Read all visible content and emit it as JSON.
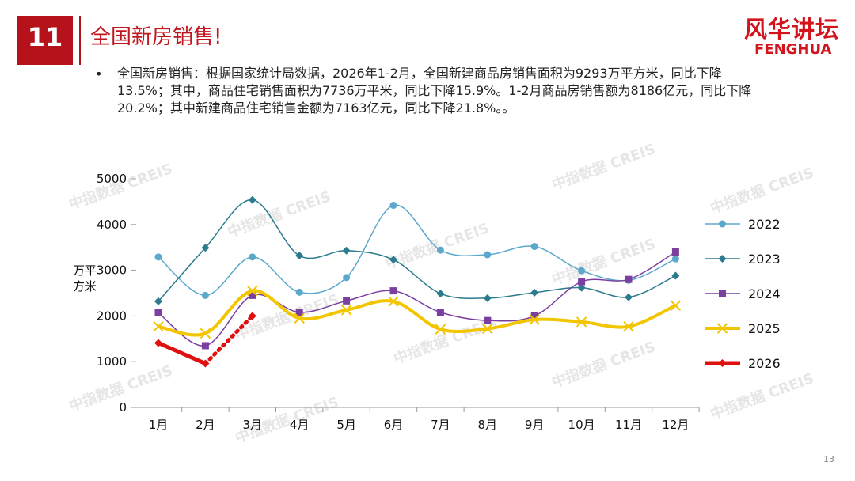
{
  "header": {
    "number": "11",
    "title": "全国新房销售!",
    "logo_cn": "风华讲坛",
    "logo_en": "FENGHUA"
  },
  "bullet": "全国新房销售：根据国家统计局数据，2026年1-2月，全国新建商品房销售面积为9293万平方米，同比下降13.5%；其中，商品住宅销售面积为7736万平米，同比下降15.9%。1-2月商品房销售额为8186亿元，同比下降20.2%；其中新建商品住宅销售金额为7163亿元，同比下降21.8%。。",
  "page_number": "13",
  "watermark": "中指数据 CREIS",
  "chart_data": {
    "type": "line",
    "y_label": "万平方米",
    "categories": [
      "1月",
      "2月",
      "3月",
      "4月",
      "5月",
      "6月",
      "7月",
      "8月",
      "9月",
      "10月",
      "11月",
      "12月"
    ],
    "ylim": [
      0,
      5000
    ],
    "yticks": [
      0,
      1000,
      2000,
      3000,
      4000,
      5000
    ],
    "grid": false,
    "legend": "right",
    "smooth": true,
    "series": [
      {
        "name": "2022",
        "color": "#5ba8cc",
        "marker": "circle",
        "values": [
          3290,
          2450,
          3290,
          2520,
          2840,
          4420,
          3440,
          3340,
          3520,
          2990,
          2780,
          3250
        ]
      },
      {
        "name": "2023",
        "color": "#2b7b8e",
        "marker": "diamond",
        "values": [
          2320,
          3490,
          4540,
          3320,
          3430,
          3230,
          2490,
          2390,
          2510,
          2620,
          2410,
          2880
        ]
      },
      {
        "name": "2024",
        "color": "#7b3fa0",
        "marker": "square",
        "values": [
          2070,
          1350,
          2450,
          2080,
          2330,
          2550,
          2080,
          1900,
          2000,
          2750,
          2800,
          3400
        ]
      },
      {
        "name": "2025",
        "color": "#f2c500",
        "marker": "x",
        "width": 4,
        "values": [
          1770,
          1620,
          2550,
          1950,
          2130,
          2320,
          1710,
          1720,
          1920,
          1870,
          1770,
          2230
        ]
      },
      {
        "name": "2026",
        "color": "#e01010",
        "marker": "diamond",
        "width": 5,
        "dotted_from": 1,
        "values": [
          1410,
          960,
          2000,
          null,
          null,
          null,
          null,
          null,
          null,
          null,
          null,
          null
        ]
      }
    ]
  }
}
